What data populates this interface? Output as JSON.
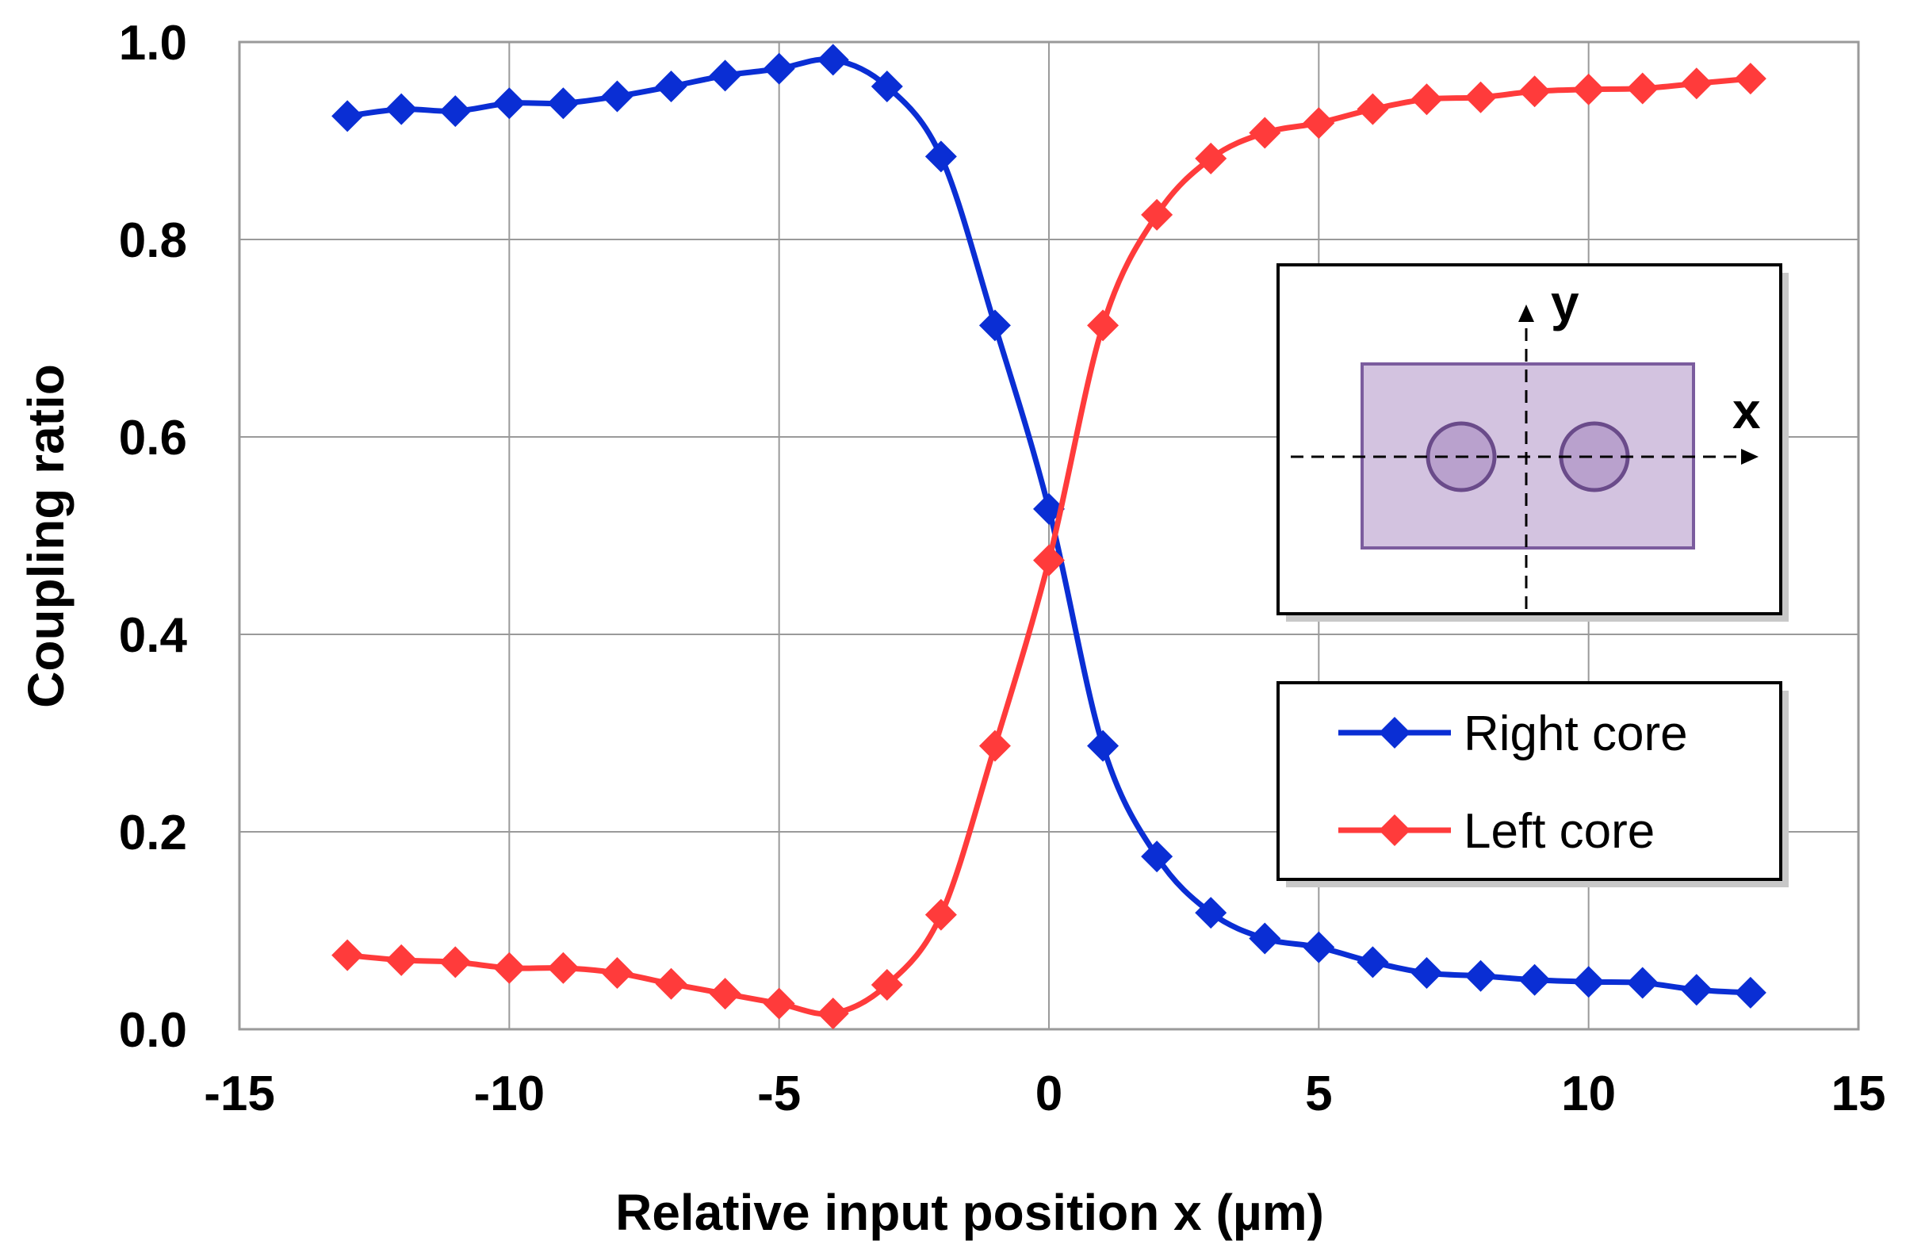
{
  "chart_data": {
    "type": "line",
    "title": "",
    "xlabel": "Relative input position x (µm)",
    "ylabel": "Coupling ratio",
    "xlim": [
      -15,
      15
    ],
    "ylim": [
      0.0,
      1.0
    ],
    "grid": true,
    "x_ticks": [
      -15,
      -10,
      -5,
      0,
      5,
      10,
      15
    ],
    "x_tick_labels": [
      "-15",
      "-10",
      "-5",
      "0",
      "5",
      "10",
      "15"
    ],
    "y_ticks": [
      0.0,
      0.2,
      0.4,
      0.6,
      0.8,
      1.0
    ],
    "y_tick_labels": [
      "0.0",
      "0.2",
      "0.4",
      "0.6",
      "0.8",
      "1.0"
    ],
    "x": [
      -13,
      -12,
      -11,
      -10,
      -9,
      -8,
      -7,
      -6,
      -5,
      -4,
      -3,
      -2,
      -1,
      0,
      1,
      2,
      3,
      4,
      5,
      6,
      7,
      8,
      9,
      10,
      11,
      12,
      13
    ],
    "series": [
      {
        "name": "Right core",
        "color": "#0a2ed4",
        "marker": "diamond",
        "values": [
          0.925,
          0.932,
          0.93,
          0.938,
          0.938,
          0.945,
          0.955,
          0.966,
          0.973,
          0.982,
          0.955,
          0.884,
          0.713,
          0.527,
          0.287,
          0.175,
          0.118,
          0.092,
          0.083,
          0.068,
          0.057,
          0.054,
          0.05,
          0.048,
          0.047,
          0.04,
          0.037
        ]
      },
      {
        "name": "Left core",
        "color": "#ff3b3b",
        "marker": "diamond",
        "values": [
          0.075,
          0.07,
          0.068,
          0.062,
          0.062,
          0.057,
          0.046,
          0.036,
          0.026,
          0.016,
          0.045,
          0.116,
          0.287,
          0.475,
          0.713,
          0.825,
          0.882,
          0.908,
          0.918,
          0.932,
          0.942,
          0.944,
          0.95,
          0.952,
          0.953,
          0.958,
          0.963
        ]
      }
    ],
    "legend_position": "right",
    "inset": {
      "x_axis_label": "x",
      "y_axis_label": "y"
    }
  }
}
